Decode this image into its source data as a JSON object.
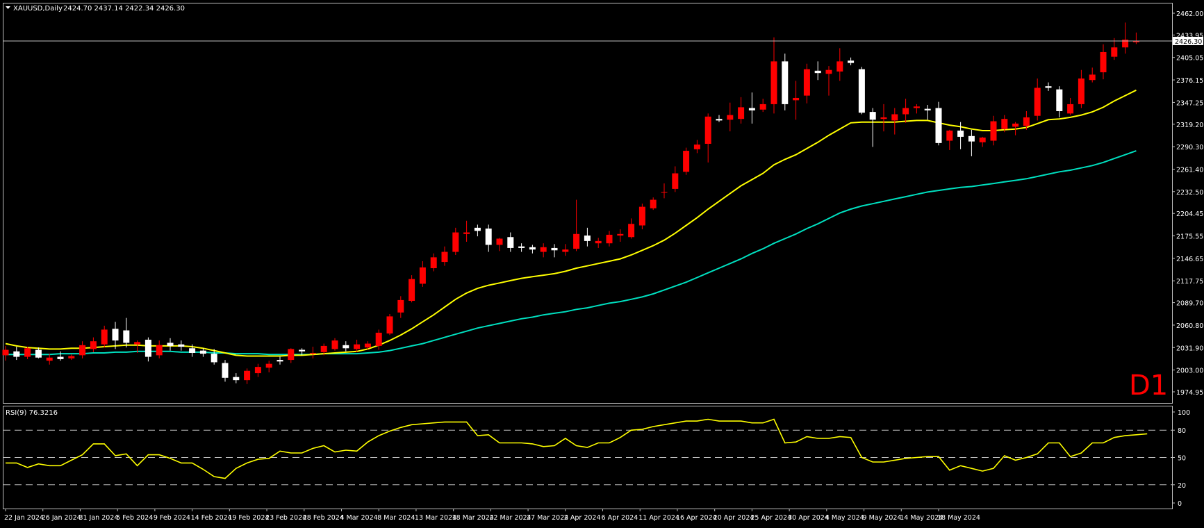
{
  "header": {
    "symbol": "XAUUSD,Daily",
    "ohlc": "2424.70 2437.14 2422.34 2426.30",
    "timeframe_badge": "D1"
  },
  "rsi_panel": {
    "label": "RSI(9) 76.3216",
    "levels": [
      80,
      50,
      20
    ],
    "ticks": [
      "100",
      "80",
      "50",
      "20",
      "0"
    ]
  },
  "price_axis": {
    "ticks": [
      "2462.00",
      "2433.95",
      "2405.05",
      "2376.15",
      "2347.25",
      "2319.20",
      "2290.30",
      "2261.40",
      "2232.50",
      "2204.45",
      "2175.55",
      "2146.65",
      "2117.75",
      "2089.70",
      "2060.80",
      "2031.90",
      "2003.00",
      "1974.95"
    ],
    "current_price": "2426.30"
  },
  "time_axis": {
    "labels": [
      "22 Jan 2024",
      "26 Jan 2024",
      "31 Jan 2024",
      "5 Feb 2024",
      "9 Feb 2024",
      "14 Feb 2024",
      "19 Feb 2024",
      "23 Feb 2024",
      "28 Feb 2024",
      "4 Mar 2024",
      "8 Mar 2024",
      "13 Mar 2024",
      "18 Mar 2024",
      "22 Mar 2024",
      "27 Mar 2024",
      "2 Apr 2024",
      "6 Apr 2024",
      "11 Apr 2024",
      "16 Apr 2024",
      "20 Apr 2024",
      "25 Apr 2024",
      "30 Apr 2024",
      "4 May 2024",
      "9 May 2024",
      "14 May 2024",
      "18 May 2024"
    ]
  },
  "colors": {
    "background": "#000000",
    "bull_candle": "#ff0000",
    "bear_candle": "#ffffff",
    "ma_fast": "#ffff00",
    "ma_slow": "#00e0c0",
    "rsi": "#ffff00",
    "grid": "#c0c0c0",
    "badge": "#ff0000"
  },
  "chart_data": [
    {
      "type": "candlestick",
      "title": "XAUUSD,Daily",
      "ylim": [
        1974.95,
        2462.0
      ],
      "candles": [
        {
          "o": 2022,
          "h": 2034,
          "l": 2015,
          "c": 2029
        },
        {
          "o": 2027,
          "h": 2033,
          "l": 2016,
          "c": 2020
        },
        {
          "o": 2020,
          "h": 2033,
          "l": 2017,
          "c": 2031
        },
        {
          "o": 2029,
          "h": 2032,
          "l": 2018,
          "c": 2019
        },
        {
          "o": 2015,
          "h": 2024,
          "l": 2010,
          "c": 2019
        },
        {
          "o": 2020,
          "h": 2027,
          "l": 2015,
          "c": 2017
        },
        {
          "o": 2018,
          "h": 2023,
          "l": 2016,
          "c": 2021
        },
        {
          "o": 2022,
          "h": 2040,
          "l": 2018,
          "c": 2035
        },
        {
          "o": 2030,
          "h": 2045,
          "l": 2026,
          "c": 2040
        },
        {
          "o": 2036,
          "h": 2060,
          "l": 2032,
          "c": 2055
        },
        {
          "o": 2056,
          "h": 2065,
          "l": 2030,
          "c": 2041
        },
        {
          "o": 2054,
          "h": 2070,
          "l": 2032,
          "c": 2038
        },
        {
          "o": 2036,
          "h": 2041,
          "l": 2025,
          "c": 2039
        },
        {
          "o": 2042,
          "h": 2045,
          "l": 2014,
          "c": 2020
        },
        {
          "o": 2022,
          "h": 2041,
          "l": 2018,
          "c": 2035
        },
        {
          "o": 2038,
          "h": 2044,
          "l": 2028,
          "c": 2034
        },
        {
          "o": 2036,
          "h": 2041,
          "l": 2028,
          "c": 2033
        },
        {
          "o": 2031,
          "h": 2036,
          "l": 2020,
          "c": 2025
        },
        {
          "o": 2028,
          "h": 2031,
          "l": 2020,
          "c": 2024
        },
        {
          "o": 2024,
          "h": 2030,
          "l": 2010,
          "c": 2013
        },
        {
          "o": 2012,
          "h": 2016,
          "l": 1988,
          "c": 1993
        },
        {
          "o": 1994,
          "h": 1999,
          "l": 1986,
          "c": 1990
        },
        {
          "o": 1990,
          "h": 2005,
          "l": 1985,
          "c": 2002
        },
        {
          "o": 1999,
          "h": 2011,
          "l": 1994,
          "c": 2007
        },
        {
          "o": 2006,
          "h": 2015,
          "l": 2000,
          "c": 2011
        },
        {
          "o": 2016,
          "h": 2020,
          "l": 2010,
          "c": 2014
        },
        {
          "o": 2016,
          "h": 2031,
          "l": 2012,
          "c": 2030
        },
        {
          "o": 2029,
          "h": 2031,
          "l": 2022,
          "c": 2027
        },
        {
          "o": 2024,
          "h": 2033,
          "l": 2018,
          "c": 2025
        },
        {
          "o": 2026,
          "h": 2037,
          "l": 2022,
          "c": 2034
        },
        {
          "o": 2030,
          "h": 2044,
          "l": 2028,
          "c": 2041
        },
        {
          "o": 2035,
          "h": 2040,
          "l": 2027,
          "c": 2031
        },
        {
          "o": 2030,
          "h": 2042,
          "l": 2026,
          "c": 2036
        },
        {
          "o": 2032,
          "h": 2040,
          "l": 2029,
          "c": 2037
        },
        {
          "o": 2034,
          "h": 2055,
          "l": 2029,
          "c": 2051
        },
        {
          "o": 2050,
          "h": 2075,
          "l": 2048,
          "c": 2072
        },
        {
          "o": 2077,
          "h": 2098,
          "l": 2070,
          "c": 2093
        },
        {
          "o": 2092,
          "h": 2125,
          "l": 2090,
          "c": 2120
        },
        {
          "o": 2114,
          "h": 2143,
          "l": 2110,
          "c": 2135
        },
        {
          "o": 2134,
          "h": 2153,
          "l": 2130,
          "c": 2148
        },
        {
          "o": 2142,
          "h": 2162,
          "l": 2137,
          "c": 2155
        },
        {
          "o": 2155,
          "h": 2186,
          "l": 2151,
          "c": 2180
        },
        {
          "o": 2178,
          "h": 2195,
          "l": 2168,
          "c": 2180
        },
        {
          "o": 2186,
          "h": 2190,
          "l": 2175,
          "c": 2182
        },
        {
          "o": 2185,
          "h": 2190,
          "l": 2155,
          "c": 2164
        },
        {
          "o": 2164,
          "h": 2173,
          "l": 2156,
          "c": 2172
        },
        {
          "o": 2174,
          "h": 2180,
          "l": 2155,
          "c": 2160
        },
        {
          "o": 2162,
          "h": 2166,
          "l": 2155,
          "c": 2160
        },
        {
          "o": 2161,
          "h": 2164,
          "l": 2153,
          "c": 2158
        },
        {
          "o": 2155,
          "h": 2166,
          "l": 2148,
          "c": 2161
        },
        {
          "o": 2160,
          "h": 2165,
          "l": 2148,
          "c": 2157
        },
        {
          "o": 2155,
          "h": 2165,
          "l": 2150,
          "c": 2158
        },
        {
          "o": 2159,
          "h": 2222,
          "l": 2156,
          "c": 2178
        },
        {
          "o": 2176,
          "h": 2186,
          "l": 2162,
          "c": 2169
        },
        {
          "o": 2166,
          "h": 2173,
          "l": 2160,
          "c": 2169
        },
        {
          "o": 2166,
          "h": 2182,
          "l": 2162,
          "c": 2177
        },
        {
          "o": 2176,
          "h": 2184,
          "l": 2168,
          "c": 2178
        },
        {
          "o": 2174,
          "h": 2198,
          "l": 2172,
          "c": 2191
        },
        {
          "o": 2189,
          "h": 2217,
          "l": 2184,
          "c": 2213
        },
        {
          "o": 2211,
          "h": 2225,
          "l": 2209,
          "c": 2222
        },
        {
          "o": 2232,
          "h": 2243,
          "l": 2224,
          "c": 2232
        },
        {
          "o": 2236,
          "h": 2265,
          "l": 2232,
          "c": 2256
        },
        {
          "o": 2258,
          "h": 2289,
          "l": 2254,
          "c": 2285
        },
        {
          "o": 2287,
          "h": 2299,
          "l": 2282,
          "c": 2293
        },
        {
          "o": 2294,
          "h": 2333,
          "l": 2270,
          "c": 2329
        },
        {
          "o": 2326,
          "h": 2331,
          "l": 2322,
          "c": 2324
        },
        {
          "o": 2325,
          "h": 2347,
          "l": 2310,
          "c": 2331
        },
        {
          "o": 2326,
          "h": 2354,
          "l": 2320,
          "c": 2341
        },
        {
          "o": 2340,
          "h": 2360,
          "l": 2320,
          "c": 2337
        },
        {
          "o": 2338,
          "h": 2352,
          "l": 2335,
          "c": 2345
        },
        {
          "o": 2345,
          "h": 2431,
          "l": 2333,
          "c": 2400
        },
        {
          "o": 2400,
          "h": 2410,
          "l": 2337,
          "c": 2345
        },
        {
          "o": 2350,
          "h": 2375,
          "l": 2325,
          "c": 2353
        },
        {
          "o": 2356,
          "h": 2397,
          "l": 2346,
          "c": 2390
        },
        {
          "o": 2388,
          "h": 2400,
          "l": 2376,
          "c": 2385
        },
        {
          "o": 2384,
          "h": 2394,
          "l": 2356,
          "c": 2389
        },
        {
          "o": 2387,
          "h": 2417,
          "l": 2375,
          "c": 2400
        },
        {
          "o": 2401,
          "h": 2405,
          "l": 2395,
          "c": 2398
        },
        {
          "o": 2390,
          "h": 2393,
          "l": 2332,
          "c": 2334
        },
        {
          "o": 2335,
          "h": 2340,
          "l": 2290,
          "c": 2325
        },
        {
          "o": 2326,
          "h": 2345,
          "l": 2310,
          "c": 2328
        },
        {
          "o": 2324,
          "h": 2340,
          "l": 2306,
          "c": 2332
        },
        {
          "o": 2332,
          "h": 2352,
          "l": 2321,
          "c": 2340
        },
        {
          "o": 2340,
          "h": 2345,
          "l": 2333,
          "c": 2342
        },
        {
          "o": 2339,
          "h": 2344,
          "l": 2325,
          "c": 2337
        },
        {
          "o": 2340,
          "h": 2348,
          "l": 2292,
          "c": 2295
        },
        {
          "o": 2298,
          "h": 2312,
          "l": 2286,
          "c": 2311
        },
        {
          "o": 2311,
          "h": 2322,
          "l": 2287,
          "c": 2303
        },
        {
          "o": 2304,
          "h": 2312,
          "l": 2278,
          "c": 2297
        },
        {
          "o": 2296,
          "h": 2303,
          "l": 2290,
          "c": 2302
        },
        {
          "o": 2298,
          "h": 2330,
          "l": 2292,
          "c": 2323
        },
        {
          "o": 2313,
          "h": 2331,
          "l": 2309,
          "c": 2326
        },
        {
          "o": 2316,
          "h": 2322,
          "l": 2305,
          "c": 2320
        },
        {
          "o": 2317,
          "h": 2336,
          "l": 2312,
          "c": 2328
        },
        {
          "o": 2330,
          "h": 2378,
          "l": 2324,
          "c": 2366
        },
        {
          "o": 2368,
          "h": 2373,
          "l": 2362,
          "c": 2366
        },
        {
          "o": 2364,
          "h": 2368,
          "l": 2328,
          "c": 2336
        },
        {
          "o": 2333,
          "h": 2353,
          "l": 2331,
          "c": 2345
        },
        {
          "o": 2345,
          "h": 2389,
          "l": 2340,
          "c": 2378
        },
        {
          "o": 2376,
          "h": 2392,
          "l": 2373,
          "c": 2383
        },
        {
          "o": 2386,
          "h": 2422,
          "l": 2377,
          "c": 2412
        },
        {
          "o": 2406,
          "h": 2430,
          "l": 2402,
          "c": 2418
        },
        {
          "o": 2418,
          "h": 2450,
          "l": 2410,
          "c": 2428
        },
        {
          "o": 2424.7,
          "h": 2437.14,
          "l": 2422.34,
          "c": 2426.3
        }
      ],
      "ma_fast": [
        2037,
        2034,
        2032,
        2031,
        2030,
        2030,
        2031,
        2031,
        2032,
        2033,
        2034,
        2035,
        2035,
        2034,
        2034,
        2034,
        2034,
        2033,
        2031,
        2028,
        2025,
        2022,
        2021,
        2021,
        2021,
        2021,
        2022,
        2022,
        2023,
        2024,
        2025,
        2026,
        2027,
        2030,
        2035,
        2041,
        2048,
        2056,
        2065,
        2074,
        2084,
        2094,
        2102,
        2108,
        2112,
        2115,
        2118,
        2121,
        2123,
        2125,
        2127,
        2130,
        2134,
        2137,
        2140,
        2143,
        2146,
        2151,
        2157,
        2163,
        2170,
        2179,
        2189,
        2199,
        2210,
        2220,
        2230,
        2240,
        2248,
        2256,
        2267,
        2274,
        2280,
        2288,
        2296,
        2305,
        2313,
        2321,
        2322,
        2322,
        2322,
        2322,
        2323,
        2324,
        2324,
        2321,
        2318,
        2316,
        2313,
        2311,
        2311,
        2312,
        2313,
        2315,
        2320,
        2325,
        2326,
        2328,
        2331,
        2335,
        2341,
        2349,
        2356,
        2363
      ],
      "ma_slow": [
        2023,
        2023,
        2023,
        2023,
        2023,
        2024,
        2024,
        2024,
        2025,
        2025,
        2026,
        2026,
        2027,
        2027,
        2027,
        2027,
        2026,
        2026,
        2026,
        2025,
        2025,
        2024,
        2024,
        2024,
        2023,
        2023,
        2023,
        2023,
        2023,
        2024,
        2024,
        2024,
        2024,
        2025,
        2026,
        2028,
        2031,
        2034,
        2037,
        2041,
        2045,
        2049,
        2053,
        2057,
        2060,
        2063,
        2066,
        2069,
        2071,
        2074,
        2076,
        2078,
        2081,
        2083,
        2086,
        2089,
        2091,
        2094,
        2097,
        2101,
        2106,
        2111,
        2116,
        2122,
        2128,
        2134,
        2140,
        2146,
        2153,
        2159,
        2166,
        2172,
        2178,
        2185,
        2191,
        2198,
        2205,
        2210,
        2214,
        2217,
        2220,
        2223,
        2226,
        2229,
        2232,
        2234,
        2236,
        2238,
        2239,
        2241,
        2243,
        2245,
        2247,
        2249,
        2252,
        2255,
        2258,
        2260,
        2263,
        2266,
        2270,
        2275,
        2280,
        2285
      ]
    },
    {
      "type": "line",
      "title": "RSI(9) 76.3216",
      "ylim": [
        0,
        100
      ],
      "series": [
        {
          "values": [
            44,
            44,
            39,
            43,
            41,
            41,
            47,
            53,
            65,
            65,
            52,
            54,
            41,
            53,
            53,
            49,
            44,
            44,
            37,
            29,
            27,
            38,
            44,
            48,
            49,
            57,
            55,
            55,
            60,
            63,
            56,
            58,
            57,
            67,
            74,
            79,
            83,
            86,
            87,
            88,
            89,
            89,
            89,
            74,
            75,
            66,
            66,
            66,
            65,
            62,
            63,
            71,
            63,
            61,
            66,
            66,
            72,
            80,
            81,
            84,
            86,
            88,
            90,
            90,
            92,
            90,
            90,
            90,
            88,
            88,
            92,
            66,
            67,
            73,
            71,
            71,
            73,
            72,
            50,
            45,
            45,
            47,
            49,
            50,
            51,
            51,
            36,
            41,
            38,
            35,
            38,
            52,
            47,
            50,
            54,
            66,
            66,
            51,
            55,
            66,
            66,
            72,
            74,
            75,
            76
          ]
        }
      ]
    }
  ]
}
